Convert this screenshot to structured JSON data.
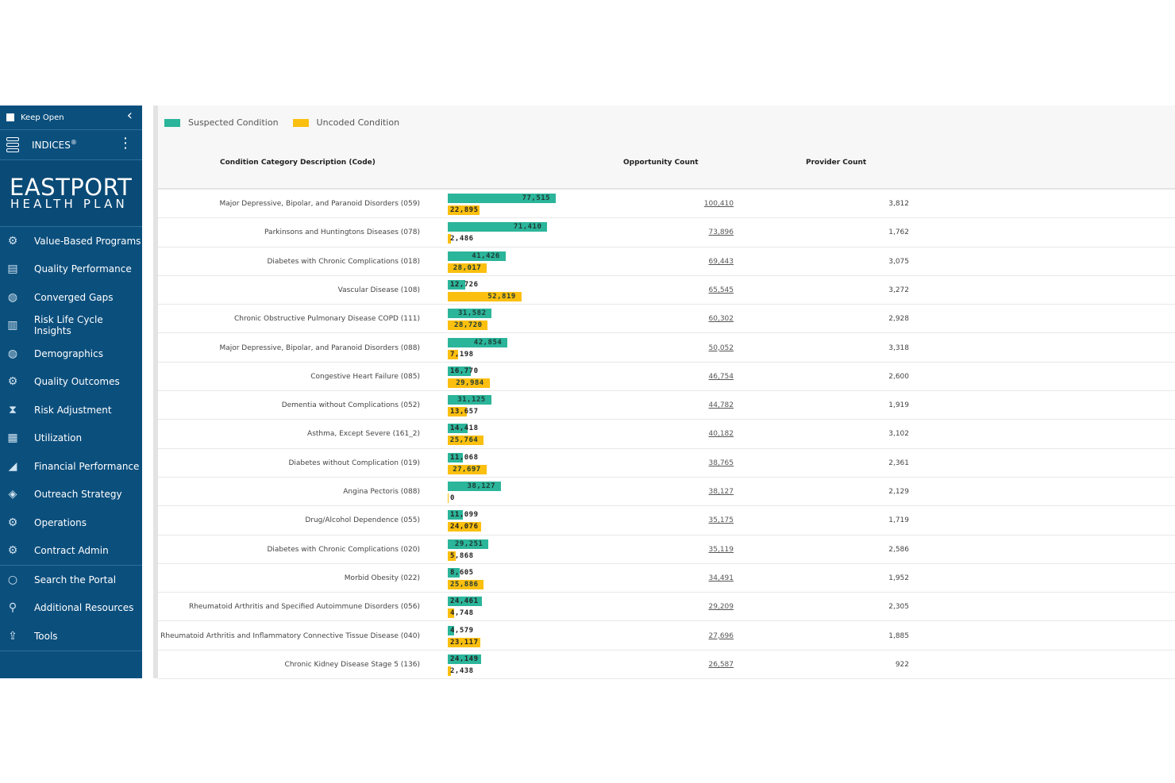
{
  "colors": {
    "sidebar_bg": "#0b4f7d",
    "suspected": "#2bb59a",
    "uncoded": "#fbbf0f"
  },
  "sidebar": {
    "keep_open_label": "Keep Open",
    "indices_label": "INDICES",
    "indices_mark": "®",
    "logo_line1": "EASTPORT",
    "logo_line2": "HEALTH PLAN",
    "nav": [
      {
        "label": "Value-Based Programs",
        "icon": "gear-badge-icon"
      },
      {
        "label": "Quality Performance",
        "icon": "scorecard-icon"
      },
      {
        "label": "Converged Gaps",
        "icon": "globe-icon"
      },
      {
        "label": "Risk Life Cycle Insights",
        "icon": "bar-chart-icon"
      },
      {
        "label": "Demographics",
        "icon": "globe-icon"
      },
      {
        "label": "Quality Outcomes",
        "icon": "gear-badge-icon"
      },
      {
        "label": "Risk Adjustment",
        "icon": "hourglass-icon"
      },
      {
        "label": "Utilization",
        "icon": "building-icon"
      },
      {
        "label": "Financial Performance",
        "icon": "growth-chart-icon"
      },
      {
        "label": "Outreach Strategy",
        "icon": "handshake-icon"
      },
      {
        "label": "Operations",
        "icon": "gears-icon"
      },
      {
        "label": "Contract Admin",
        "icon": "gear-badge-icon"
      }
    ],
    "tools": [
      {
        "label": "Search the Portal",
        "icon": "search-icon"
      },
      {
        "label": "Additional Resources",
        "icon": "link-icon"
      },
      {
        "label": "Tools",
        "icon": "upload-box-icon"
      }
    ]
  },
  "legend": {
    "suspected": "Suspected Condition",
    "uncoded": "Uncoded Condition"
  },
  "table": {
    "headers": {
      "desc": "Condition Category Description (Code)",
      "opp": "Opportunity Count",
      "prov": "Provider Count"
    },
    "bar_max": 77515,
    "rows": [
      {
        "desc": "Major Depressive, Bipolar, and Paranoid Disorders (059)",
        "suspected": 77515,
        "suspected_label": "77,515",
        "uncoded": 22895,
        "uncoded_label": "22,895",
        "opp": "100,410",
        "prov": "3,812"
      },
      {
        "desc": "Parkinsons and Huntingtons Diseases (078)",
        "suspected": 71410,
        "suspected_label": "71,410",
        "uncoded": 2486,
        "uncoded_label": "2,486",
        "opp": "73,896",
        "prov": "1,762"
      },
      {
        "desc": "Diabetes with Chronic Complications (018)",
        "suspected": 41426,
        "suspected_label": "41,426",
        "uncoded": 28017,
        "uncoded_label": "28,017",
        "opp": "69,443",
        "prov": "3,075"
      },
      {
        "desc": "Vascular Disease (108)",
        "suspected": 12726,
        "suspected_label": "12,726",
        "uncoded": 52819,
        "uncoded_label": "52,819",
        "opp": "65,545",
        "prov": "3,272"
      },
      {
        "desc": "Chronic Obstructive Pulmonary Disease COPD (111)",
        "suspected": 31582,
        "suspected_label": "31,582",
        "uncoded": 28720,
        "uncoded_label": "28,720",
        "opp": "60,302",
        "prov": "2,928"
      },
      {
        "desc": "Major Depressive, Bipolar, and Paranoid Disorders (088)",
        "suspected": 42854,
        "suspected_label": "42,854",
        "uncoded": 7198,
        "uncoded_label": "7,198",
        "opp": "50,052",
        "prov": "3,318"
      },
      {
        "desc": "Congestive Heart Failure (085)",
        "suspected": 16770,
        "suspected_label": "16,770",
        "uncoded": 29984,
        "uncoded_label": "29,984",
        "opp": "46,754",
        "prov": "2,600"
      },
      {
        "desc": "Dementia without Complications (052)",
        "suspected": 31125,
        "suspected_label": "31,125",
        "uncoded": 13657,
        "uncoded_label": "13,657",
        "opp": "44,782",
        "prov": "1,919"
      },
      {
        "desc": "Asthma, Except Severe (161_2)",
        "suspected": 14418,
        "suspected_label": "14,418",
        "uncoded": 25764,
        "uncoded_label": "25,764",
        "opp": "40,182",
        "prov": "3,102"
      },
      {
        "desc": "Diabetes without Complication (019)",
        "suspected": 11068,
        "suspected_label": "11,068",
        "uncoded": 27697,
        "uncoded_label": "27,697",
        "opp": "38,765",
        "prov": "2,361"
      },
      {
        "desc": "Angina Pectoris (088)",
        "suspected": 38127,
        "suspected_label": "38,127",
        "uncoded": 0,
        "uncoded_label": "0",
        "opp": "38,127",
        "prov": "2,129"
      },
      {
        "desc": "Drug/Alcohol Dependence (055)",
        "suspected": 11099,
        "suspected_label": "11,099",
        "uncoded": 24076,
        "uncoded_label": "24,076",
        "opp": "35,175",
        "prov": "1,719"
      },
      {
        "desc": "Diabetes with Chronic Complications (020)",
        "suspected": 29251,
        "suspected_label": "29,251",
        "uncoded": 5868,
        "uncoded_label": "5,868",
        "opp": "35,119",
        "prov": "2,586"
      },
      {
        "desc": "Morbid Obesity (022)",
        "suspected": 8605,
        "suspected_label": "8,605",
        "uncoded": 25886,
        "uncoded_label": "25,886",
        "opp": "34,491",
        "prov": "1,952"
      },
      {
        "desc": "Rheumatoid Arthritis and Specified Autoimmune Disorders (056)",
        "suspected": 24461,
        "suspected_label": "24,461",
        "uncoded": 4748,
        "uncoded_label": "4,748",
        "opp": "29,209",
        "prov": "2,305"
      },
      {
        "desc": "Rheumatoid Arthritis and Inflammatory Connective Tissue Disease (040)",
        "suspected": 4579,
        "suspected_label": "4,579",
        "uncoded": 23117,
        "uncoded_label": "23,117",
        "opp": "27,696",
        "prov": "1,885"
      },
      {
        "desc": "Chronic Kidney Disease Stage 5 (136)",
        "suspected": 24149,
        "suspected_label": "24,149",
        "uncoded": 2438,
        "uncoded_label": "2,438",
        "opp": "26,587",
        "prov": "922"
      }
    ]
  }
}
